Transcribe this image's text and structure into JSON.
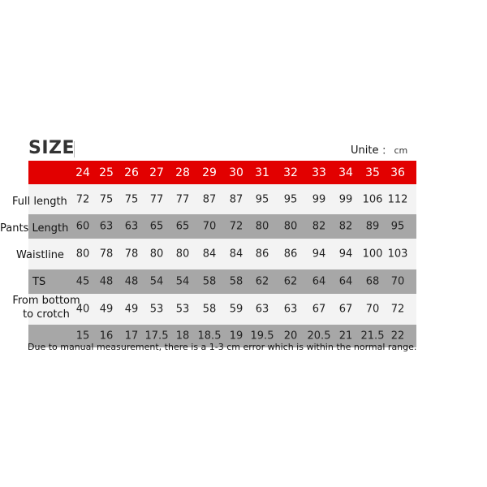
{
  "title": "SIZE",
  "unit_label": "Unite",
  "unit_colon": "：",
  "unit_value": "cm",
  "colors": {
    "header": "#e20000",
    "row_light": "#f3f3f3",
    "row_dark": "#a7a7a7"
  },
  "sizes": [
    "24",
    "25",
    "26",
    "27",
    "28",
    "29",
    "30",
    "31",
    "32",
    "33",
    "34",
    "35",
    "36"
  ],
  "rows": [
    {
      "label": "Full length",
      "values": [
        "72",
        "75",
        "75",
        "77",
        "77",
        "87",
        "87",
        "95",
        "95",
        "99",
        "99",
        "106",
        "112"
      ]
    },
    {
      "label": "Pants Length",
      "values": [
        "60",
        "63",
        "63",
        "65",
        "65",
        "70",
        "72",
        "80",
        "80",
        "82",
        "82",
        "89",
        "95"
      ]
    },
    {
      "label": "Waistline",
      "values": [
        "80",
        "78",
        "78",
        "80",
        "80",
        "84",
        "84",
        "86",
        "86",
        "94",
        "94",
        "100",
        "103"
      ]
    },
    {
      "label": "TS",
      "values": [
        "45",
        "48",
        "48",
        "54",
        "54",
        "58",
        "58",
        "62",
        "62",
        "64",
        "64",
        "68",
        "70"
      ]
    },
    {
      "label": "From bottom to crotch",
      "values": [
        "40",
        "49",
        "49",
        "53",
        "53",
        "58",
        "59",
        "63",
        "63",
        "67",
        "67",
        "70",
        "72"
      ]
    },
    {
      "label": "",
      "values": [
        "15",
        "16",
        "17",
        "17.5",
        "18",
        "18.5",
        "19",
        "19.5",
        "20",
        "20.5",
        "21",
        "21.5",
        "22"
      ]
    }
  ],
  "note": "Due to manual measurement, there is a 1-3 cm error which is within the normal range."
}
